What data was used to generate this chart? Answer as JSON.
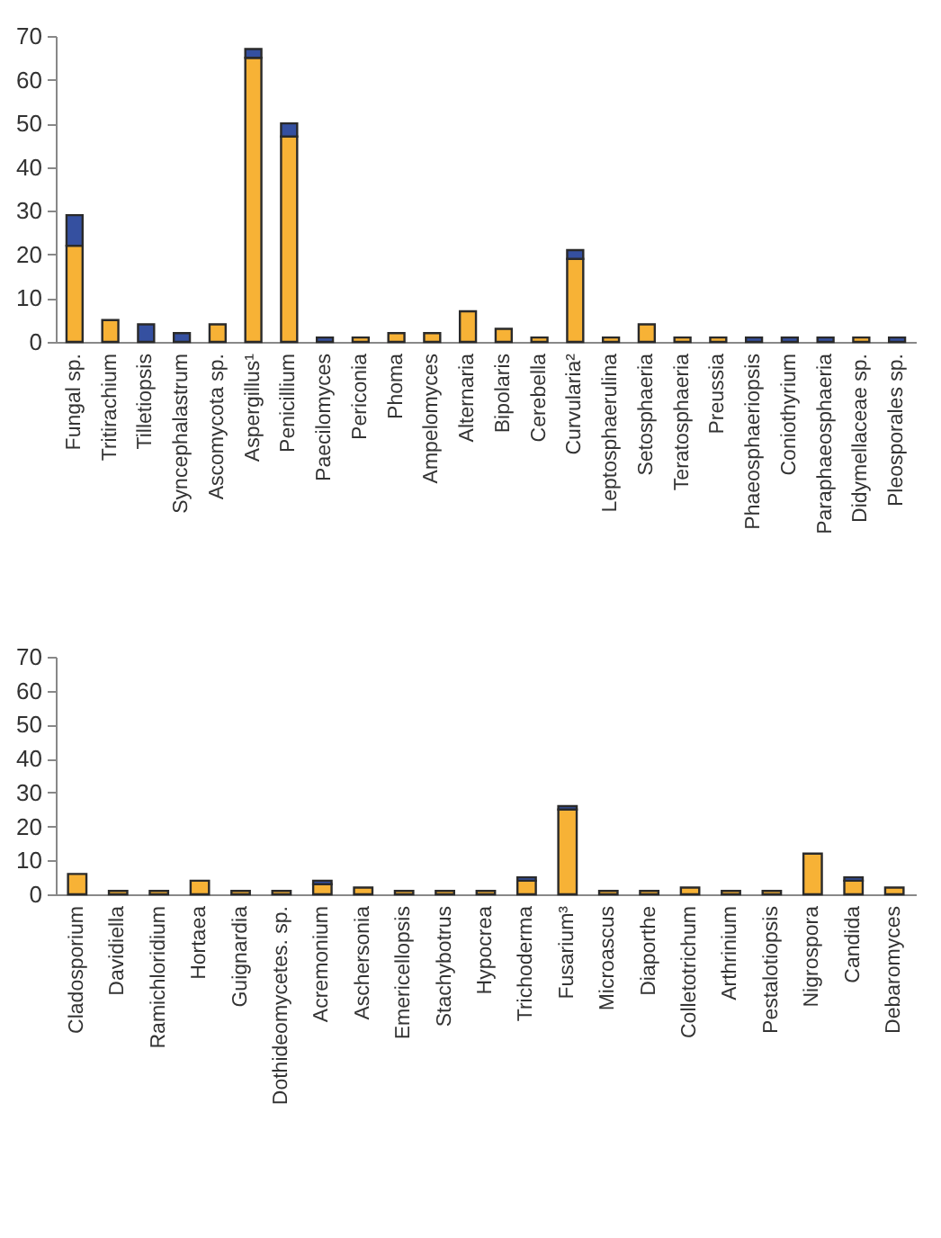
{
  "chart_data": [
    {
      "type": "bar",
      "stacked": true,
      "categories": [
        "Fungal sp.",
        "Tritirachium",
        "Tilletiopsis",
        "Syncephalastrum",
        "Ascomycota sp.",
        "Aspergillus¹",
        "Penicillium",
        "Paecilomyces",
        "Periconia",
        "Phoma",
        "Ampelomyces",
        "Alternaria",
        "Bipolaris",
        "Cerebella",
        "Curvularia²",
        "Leptosphaerulina",
        "Setosphaeria",
        "Teratosphaeria",
        "Preussia",
        "Phaeosphaeriopsis",
        "Coniothyrium",
        "Paraphaeosphaeria",
        "Didymellaceae sp.",
        "Pleosporales sp."
      ],
      "series": [
        {
          "color": "#f7b236",
          "values": [
            22,
            5,
            null,
            null,
            4,
            65,
            47,
            null,
            1,
            2,
            2,
            7,
            3,
            1,
            19,
            1,
            4,
            1,
            1,
            null,
            null,
            null,
            1,
            null
          ]
        },
        {
          "color": "#3550a0",
          "values": [
            7,
            null,
            4,
            2,
            null,
            2,
            3,
            1,
            null,
            null,
            null,
            null,
            null,
            null,
            2,
            null,
            null,
            null,
            null,
            1,
            1,
            1,
            null,
            1
          ]
        }
      ],
      "ylim": [
        0,
        70
      ],
      "yticks": [
        0,
        10,
        20,
        30,
        40,
        50,
        60,
        70
      ],
      "grid": false,
      "legend": false
    },
    {
      "type": "bar",
      "stacked": true,
      "categories": [
        "Cladosporium",
        "Davidiella",
        "Ramichloridium",
        "Hortaea",
        "Guignardia",
        "Dothideomycetes. sp.",
        "Acremonium",
        "Aschersonia",
        "Emericellopsis",
        "Stachybotrus",
        "Hypocrea",
        "Trichoderma",
        "Fusarium³",
        "Microascus",
        "Diaporthe",
        "Colletotrichum",
        "Arthrinium",
        "Pestalotiopsis",
        "Nigrospora",
        "Candida",
        "Debaromyces"
      ],
      "series": [
        {
          "color": "#f7b236",
          "values": [
            6,
            1,
            1,
            4,
            1,
            1,
            3,
            2,
            1,
            1,
            1,
            4,
            25,
            1,
            1,
            2,
            1,
            1,
            12,
            4,
            2
          ]
        },
        {
          "color": "#3550a0",
          "values": [
            null,
            null,
            null,
            null,
            null,
            null,
            1,
            null,
            null,
            null,
            null,
            1,
            1,
            null,
            null,
            null,
            null,
            null,
            null,
            1,
            null
          ]
        }
      ],
      "ylim": [
        0,
        70
      ],
      "yticks": [
        0,
        10,
        20,
        30,
        40,
        50,
        60,
        70
      ],
      "grid": false,
      "legend": false
    }
  ]
}
